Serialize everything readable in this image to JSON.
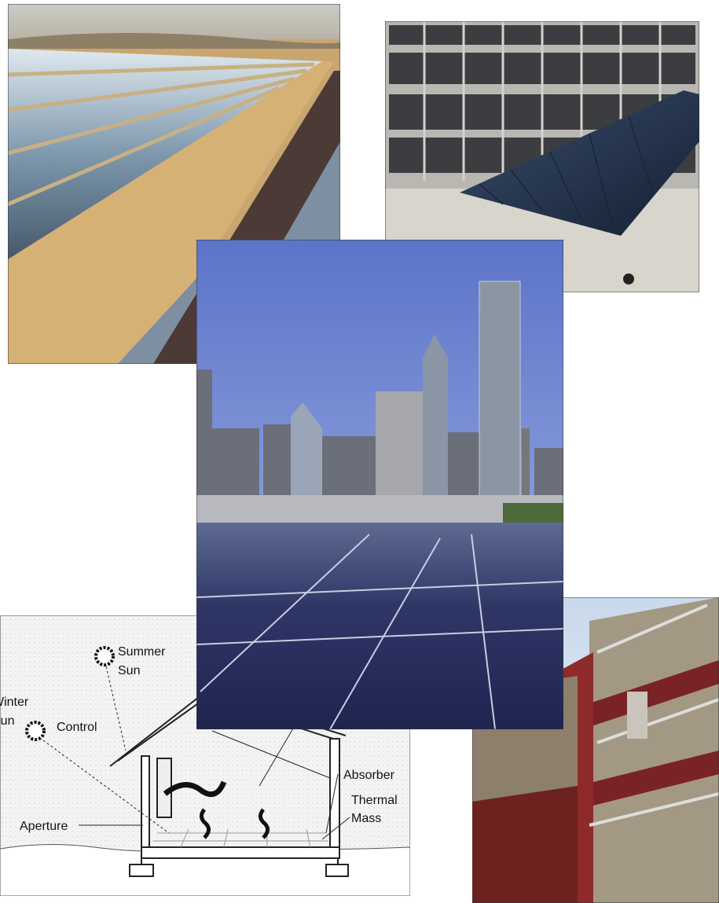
{
  "diagram": {
    "labels": {
      "summer_sun": [
        "Summer",
        "Sun"
      ],
      "winter_sun": [
        "Winter",
        "Sun"
      ],
      "control": "Control",
      "aperture": "Aperture",
      "absorber": "Absorber",
      "thermal_mass": [
        "Thermal",
        "Mass"
      ]
    }
  }
}
